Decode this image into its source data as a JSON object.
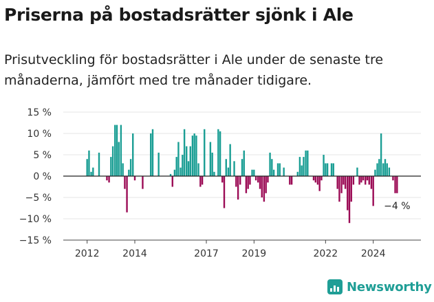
{
  "header": {
    "title": "Priserna på bostadsrätter sjönk i Ale",
    "subtitle": "Prisutveckling för bostadsrätter i Ale under de senaste tre månaderna, jämfört med tre månader tidigare."
  },
  "brand": {
    "name": "Newsworthy",
    "icon": "newsworthy-logo-icon",
    "color": "#1f9e96"
  },
  "chart_data": {
    "type": "bar",
    "title": "Priserna på bostadsrätter sjönk i Ale",
    "subtitle": "Prisutveckling för bostadsrätter i Ale under de senaste tre månaderna, jämfört med tre månader tidigare.",
    "xlabel": "",
    "ylabel": "",
    "unit": "%",
    "x_range": [
      2011.0,
      2026.0
    ],
    "ylim": [
      -15,
      15
    ],
    "y_ticks": [
      {
        "value": 15,
        "label": "15 %"
      },
      {
        "value": 10,
        "label": "10 %"
      },
      {
        "value": 5,
        "label": "5 %"
      },
      {
        "value": 0,
        "label": "0 %"
      },
      {
        "value": -5,
        "label": "−5 %"
      },
      {
        "value": -10,
        "label": "−10 %"
      },
      {
        "value": -15,
        "label": "−15 %"
      }
    ],
    "x_ticks": [
      {
        "value": 2012,
        "label": "2012"
      },
      {
        "value": 2014,
        "label": "2014"
      },
      {
        "value": 2017,
        "label": "2017"
      },
      {
        "value": 2019,
        "label": "2019"
      },
      {
        "value": 2022,
        "label": "2022"
      },
      {
        "value": 2024,
        "label": "2024"
      }
    ],
    "grid": true,
    "colors": {
      "positive": "#1a9e94",
      "negative": "#9b0b55",
      "zero_line": "#222222",
      "grid": "#e4e4e4"
    },
    "annotation": {
      "x": 2025.0,
      "y": -4,
      "text": "−4 %"
    },
    "points": [
      {
        "x": 2012.0,
        "y": 4.0
      },
      {
        "x": 2012.08,
        "y": 6.0
      },
      {
        "x": 2012.17,
        "y": 1.0
      },
      {
        "x": 2012.25,
        "y": 2.0
      },
      {
        "x": 2012.5,
        "y": 5.5
      },
      {
        "x": 2012.83,
        "y": -1.0
      },
      {
        "x": 2012.92,
        "y": -1.5
      },
      {
        "x": 2013.0,
        "y": 4.5
      },
      {
        "x": 2013.08,
        "y": 7.0
      },
      {
        "x": 2013.17,
        "y": 12.0
      },
      {
        "x": 2013.25,
        "y": 12.0
      },
      {
        "x": 2013.33,
        "y": 8.0
      },
      {
        "x": 2013.42,
        "y": 12.0
      },
      {
        "x": 2013.5,
        "y": 3.0
      },
      {
        "x": 2013.58,
        "y": -3.0
      },
      {
        "x": 2013.67,
        "y": -8.5
      },
      {
        "x": 2013.75,
        "y": 1.5
      },
      {
        "x": 2013.83,
        "y": 4.0
      },
      {
        "x": 2013.92,
        "y": 10.0
      },
      {
        "x": 2014.0,
        "y": -1.0
      },
      {
        "x": 2014.33,
        "y": -3.0
      },
      {
        "x": 2014.67,
        "y": 10.0
      },
      {
        "x": 2014.75,
        "y": 11.0
      },
      {
        "x": 2015.0,
        "y": 5.5
      },
      {
        "x": 2015.5,
        "y": 0.5
      },
      {
        "x": 2015.58,
        "y": -2.5
      },
      {
        "x": 2015.67,
        "y": 1.5
      },
      {
        "x": 2015.75,
        "y": 4.5
      },
      {
        "x": 2015.83,
        "y": 8.0
      },
      {
        "x": 2015.92,
        "y": 2.0
      },
      {
        "x": 2016.0,
        "y": 5.0
      },
      {
        "x": 2016.08,
        "y": 11.0
      },
      {
        "x": 2016.17,
        "y": 7.0
      },
      {
        "x": 2016.25,
        "y": 3.5
      },
      {
        "x": 2016.33,
        "y": 7.0
      },
      {
        "x": 2016.42,
        "y": 9.5
      },
      {
        "x": 2016.5,
        "y": 10.0
      },
      {
        "x": 2016.58,
        "y": 9.5
      },
      {
        "x": 2016.67,
        "y": 3.0
      },
      {
        "x": 2016.75,
        "y": -2.5
      },
      {
        "x": 2016.83,
        "y": -2.0
      },
      {
        "x": 2016.92,
        "y": 11.0
      },
      {
        "x": 2017.17,
        "y": 8.0
      },
      {
        "x": 2017.25,
        "y": 5.5
      },
      {
        "x": 2017.33,
        "y": 1.0
      },
      {
        "x": 2017.5,
        "y": 11.0
      },
      {
        "x": 2017.58,
        "y": 10.5
      },
      {
        "x": 2017.67,
        "y": -1.5
      },
      {
        "x": 2017.75,
        "y": -7.5
      },
      {
        "x": 2017.83,
        "y": 4.0
      },
      {
        "x": 2017.92,
        "y": 2.0
      },
      {
        "x": 2018.0,
        "y": 7.5
      },
      {
        "x": 2018.17,
        "y": 3.5
      },
      {
        "x": 2018.25,
        "y": -2.5
      },
      {
        "x": 2018.33,
        "y": -5.5
      },
      {
        "x": 2018.42,
        "y": -2.0
      },
      {
        "x": 2018.5,
        "y": 4.0
      },
      {
        "x": 2018.58,
        "y": 6.0
      },
      {
        "x": 2018.67,
        "y": -4.0
      },
      {
        "x": 2018.75,
        "y": -3.0
      },
      {
        "x": 2018.83,
        "y": -2.0
      },
      {
        "x": 2018.92,
        "y": 1.5
      },
      {
        "x": 2019.0,
        "y": 1.5
      },
      {
        "x": 2019.08,
        "y": -1.0
      },
      {
        "x": 2019.17,
        "y": -1.5
      },
      {
        "x": 2019.25,
        "y": -3.0
      },
      {
        "x": 2019.33,
        "y": -5.0
      },
      {
        "x": 2019.42,
        "y": -6.0
      },
      {
        "x": 2019.5,
        "y": -4.0
      },
      {
        "x": 2019.58,
        "y": -1.5
      },
      {
        "x": 2019.67,
        "y": 5.5
      },
      {
        "x": 2019.75,
        "y": 4.0
      },
      {
        "x": 2019.83,
        "y": 1.5
      },
      {
        "x": 2020.0,
        "y": 3.0
      },
      {
        "x": 2020.08,
        "y": 3.0
      },
      {
        "x": 2020.25,
        "y": 2.0
      },
      {
        "x": 2020.5,
        "y": -2.0
      },
      {
        "x": 2020.58,
        "y": -2.0
      },
      {
        "x": 2020.83,
        "y": 1.0
      },
      {
        "x": 2020.92,
        "y": 4.5
      },
      {
        "x": 2021.0,
        "y": 2.5
      },
      {
        "x": 2021.08,
        "y": 4.5
      },
      {
        "x": 2021.17,
        "y": 6.0
      },
      {
        "x": 2021.25,
        "y": 6.0
      },
      {
        "x": 2021.5,
        "y": -1.0
      },
      {
        "x": 2021.58,
        "y": -1.5
      },
      {
        "x": 2021.67,
        "y": -2.0
      },
      {
        "x": 2021.75,
        "y": -3.5
      },
      {
        "x": 2021.83,
        "y": -1.0
      },
      {
        "x": 2021.92,
        "y": 5.0
      },
      {
        "x": 2022.0,
        "y": 3.0
      },
      {
        "x": 2022.08,
        "y": 3.0
      },
      {
        "x": 2022.25,
        "y": 3.0
      },
      {
        "x": 2022.33,
        "y": 3.0
      },
      {
        "x": 2022.5,
        "y": -3.0
      },
      {
        "x": 2022.58,
        "y": -6.0
      },
      {
        "x": 2022.67,
        "y": -4.0
      },
      {
        "x": 2022.75,
        "y": -2.0
      },
      {
        "x": 2022.83,
        "y": -3.0
      },
      {
        "x": 2022.92,
        "y": -8.0
      },
      {
        "x": 2023.0,
        "y": -11.0
      },
      {
        "x": 2023.08,
        "y": -6.0
      },
      {
        "x": 2023.17,
        "y": -2.0
      },
      {
        "x": 2023.33,
        "y": 2.0
      },
      {
        "x": 2023.42,
        "y": -2.0
      },
      {
        "x": 2023.5,
        "y": -1.5
      },
      {
        "x": 2023.58,
        "y": -1.0
      },
      {
        "x": 2023.67,
        "y": -2.0
      },
      {
        "x": 2023.75,
        "y": -1.0
      },
      {
        "x": 2023.83,
        "y": -2.0
      },
      {
        "x": 2023.92,
        "y": -3.0
      },
      {
        "x": 2024.0,
        "y": -7.0
      },
      {
        "x": 2024.08,
        "y": 1.5
      },
      {
        "x": 2024.17,
        "y": 3.0
      },
      {
        "x": 2024.25,
        "y": 4.0
      },
      {
        "x": 2024.33,
        "y": 10.0
      },
      {
        "x": 2024.42,
        "y": 3.0
      },
      {
        "x": 2024.5,
        "y": 4.0
      },
      {
        "x": 2024.58,
        "y": 3.0
      },
      {
        "x": 2024.67,
        "y": 2.0
      },
      {
        "x": 2024.83,
        "y": -1.0
      },
      {
        "x": 2024.92,
        "y": -4.0
      },
      {
        "x": 2025.0,
        "y": -4.0
      }
    ]
  }
}
